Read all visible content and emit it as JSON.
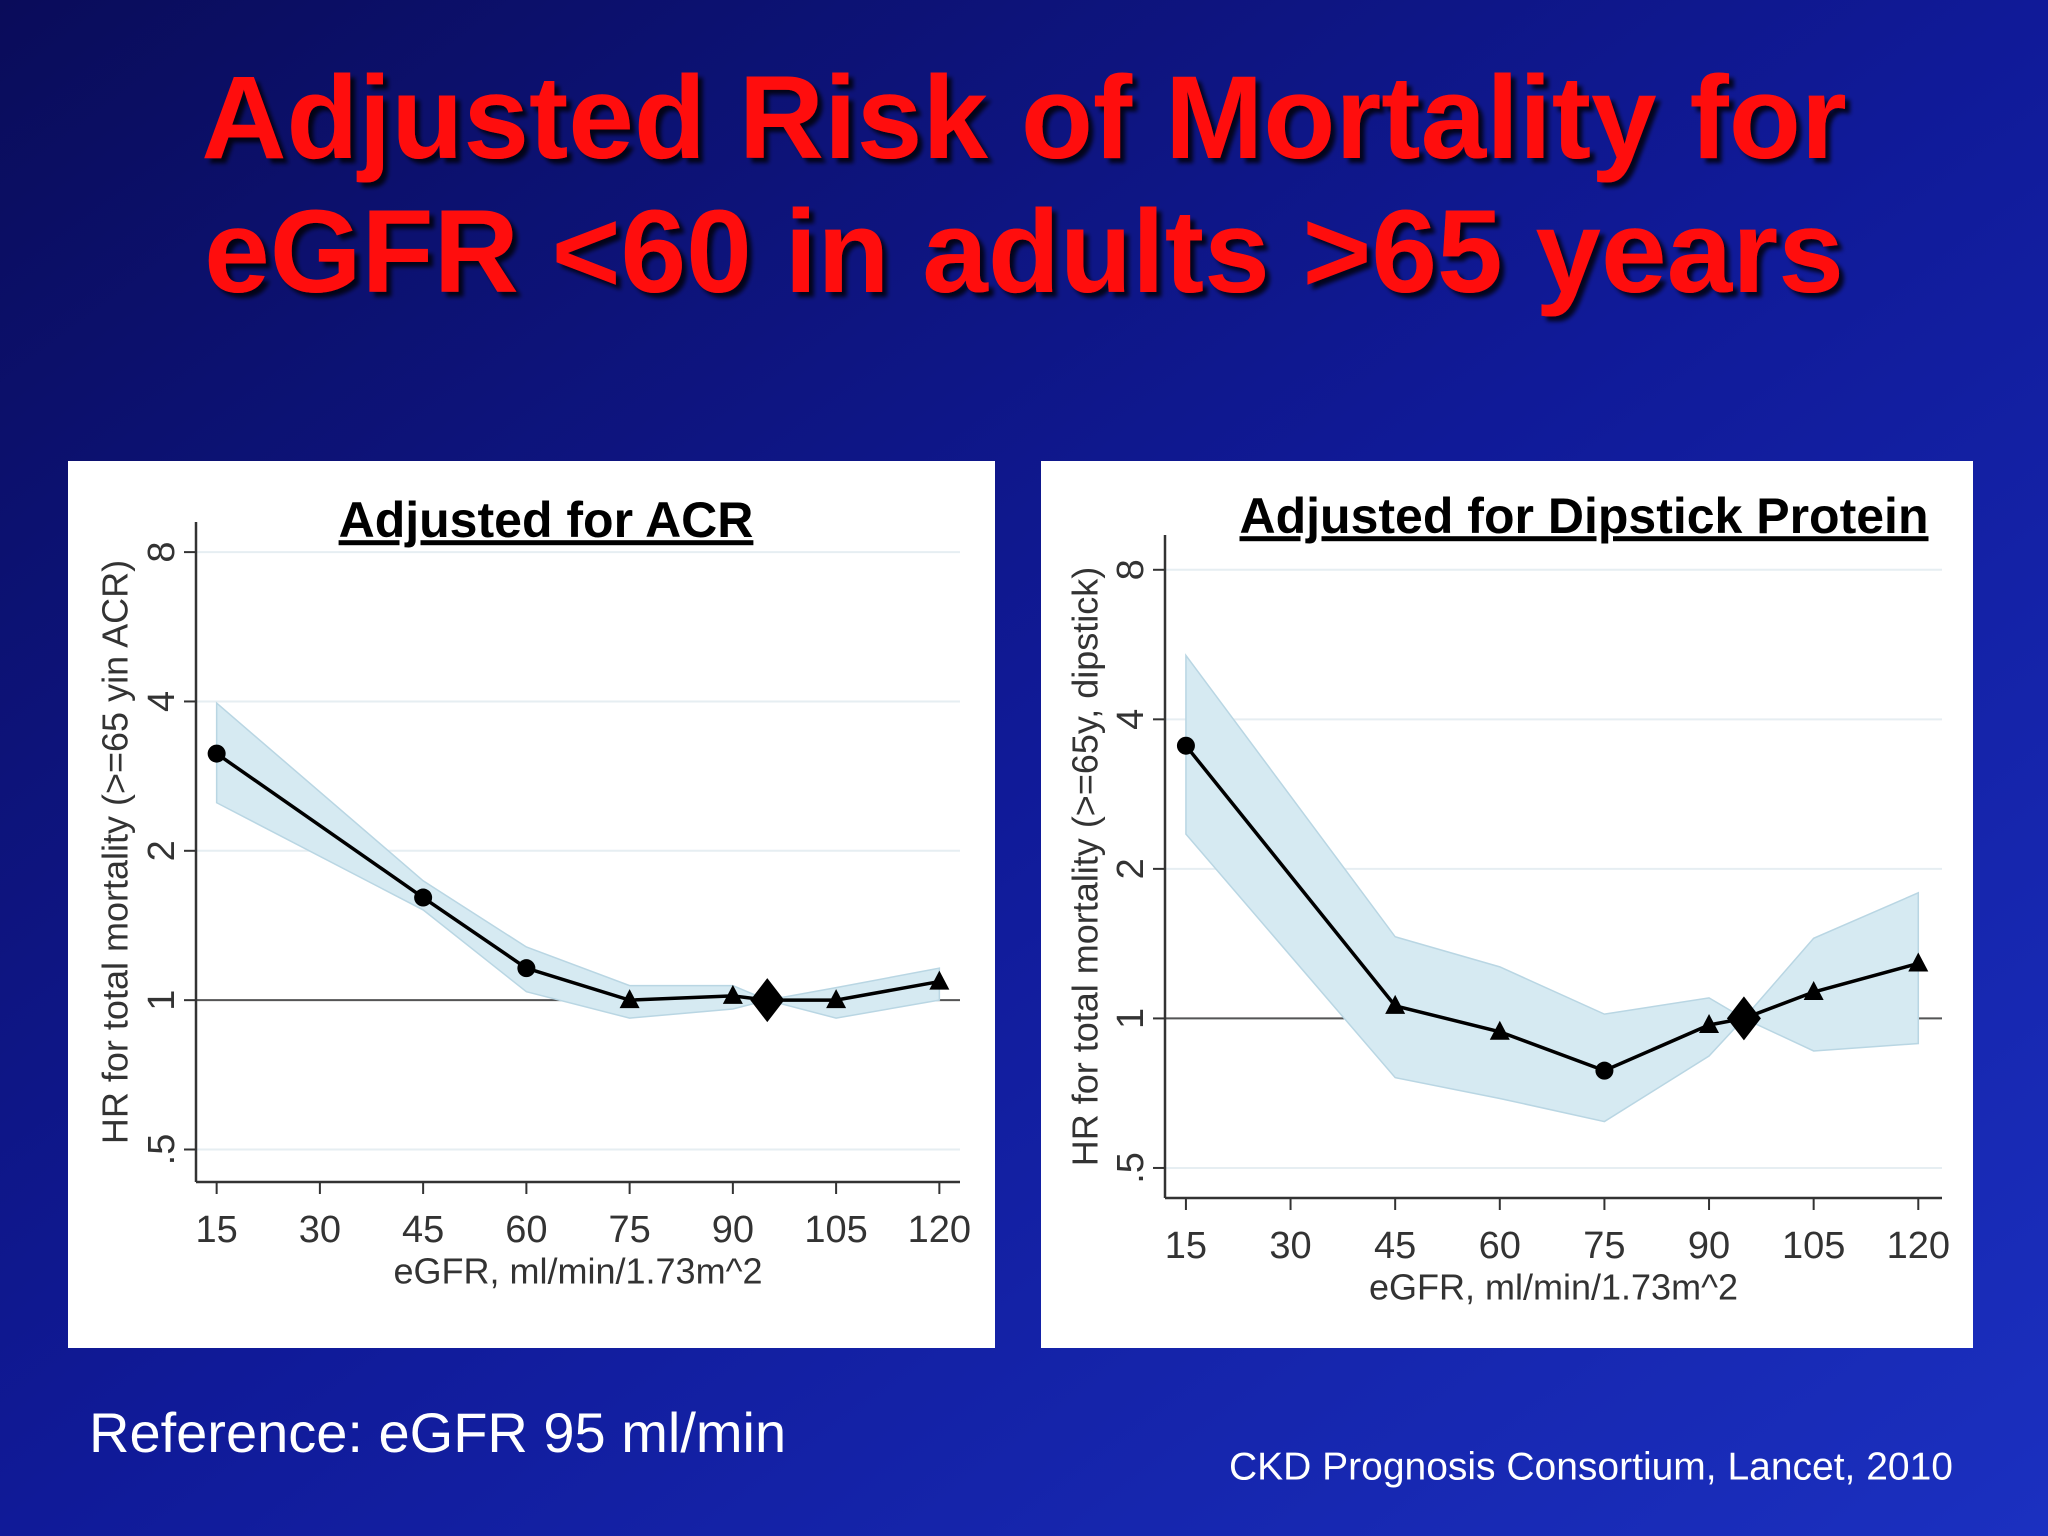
{
  "title": [
    "Adjusted Risk of Mortality for",
    "eGFR <60 in adults >65 years"
  ],
  "reference": "Reference: eGFR 95 ml/min",
  "citation": "CKD Prognosis Consortium, Lancet, 2010",
  "chart_data": [
    {
      "type": "line",
      "title": "Adjusted for ACR",
      "x_label": "eGFR, ml/min/1.73m^2",
      "y_label": "HR for total mortality (>=65 yin ACR)",
      "x": [
        15,
        45,
        60,
        75,
        90,
        95,
        105,
        120
      ],
      "values": [
        3.14,
        1.61,
        1.16,
        1.0,
        1.02,
        1,
        1.0,
        1.09
      ],
      "ci_lower": [
        2.5,
        1.52,
        1.04,
        0.92,
        0.96,
        1,
        0.92,
        1.0
      ],
      "ci_upper": [
        3.97,
        1.74,
        1.28,
        1.07,
        1.07,
        1,
        1.06,
        1.16
      ],
      "markers": [
        "circle",
        "circle",
        "circle",
        "triangle",
        "triangle",
        "diamond",
        "triangle",
        "triangle"
      ],
      "color": "#000000",
      "band_color": "#d6eaf2",
      "xlim": [
        12,
        123
      ],
      "xticks": [
        15,
        30,
        45,
        60,
        75,
        90,
        105,
        120
      ],
      "ylim": [
        0.43,
        9.2
      ],
      "log_y": true,
      "yticks": [
        {
          "value": 0.5,
          "label": ".5"
        },
        1,
        2,
        4,
        8
      ],
      "reference_line": 1,
      "grid": true
    },
    {
      "type": "line",
      "title": "Adjusted for Dipstick Protein",
      "x_label": "eGFR, ml/min/1.73m^2",
      "y_label": "HR for total mortality (>=65y, dipstick)",
      "x": [
        15,
        45,
        60,
        75,
        90,
        95,
        105,
        120
      ],
      "values": [
        3.54,
        1.06,
        0.94,
        0.785,
        0.97,
        1,
        1.13,
        1.29
      ],
      "ci_lower": [
        2.35,
        0.76,
        0.69,
        0.62,
        0.84,
        1,
        0.86,
        0.89
      ],
      "ci_upper": [
        5.38,
        1.46,
        1.27,
        1.02,
        1.1,
        1,
        1.45,
        1.79
      ],
      "markers": [
        "circle",
        "triangle",
        "triangle",
        "circle",
        "triangle",
        "diamond",
        "triangle",
        "triangle"
      ],
      "color": "#000000",
      "band_color": "#d6eaf2",
      "xlim": [
        12,
        123.4
      ],
      "xticks": [
        15,
        30,
        45,
        60,
        75,
        90,
        105,
        120
      ],
      "ylim": [
        0.435,
        9.4
      ],
      "log_y": true,
      "yticks": [
        {
          "value": 0.5,
          "label": ".5"
        },
        1,
        2,
        4,
        8
      ],
      "reference_line": 1,
      "grid": true
    }
  ]
}
